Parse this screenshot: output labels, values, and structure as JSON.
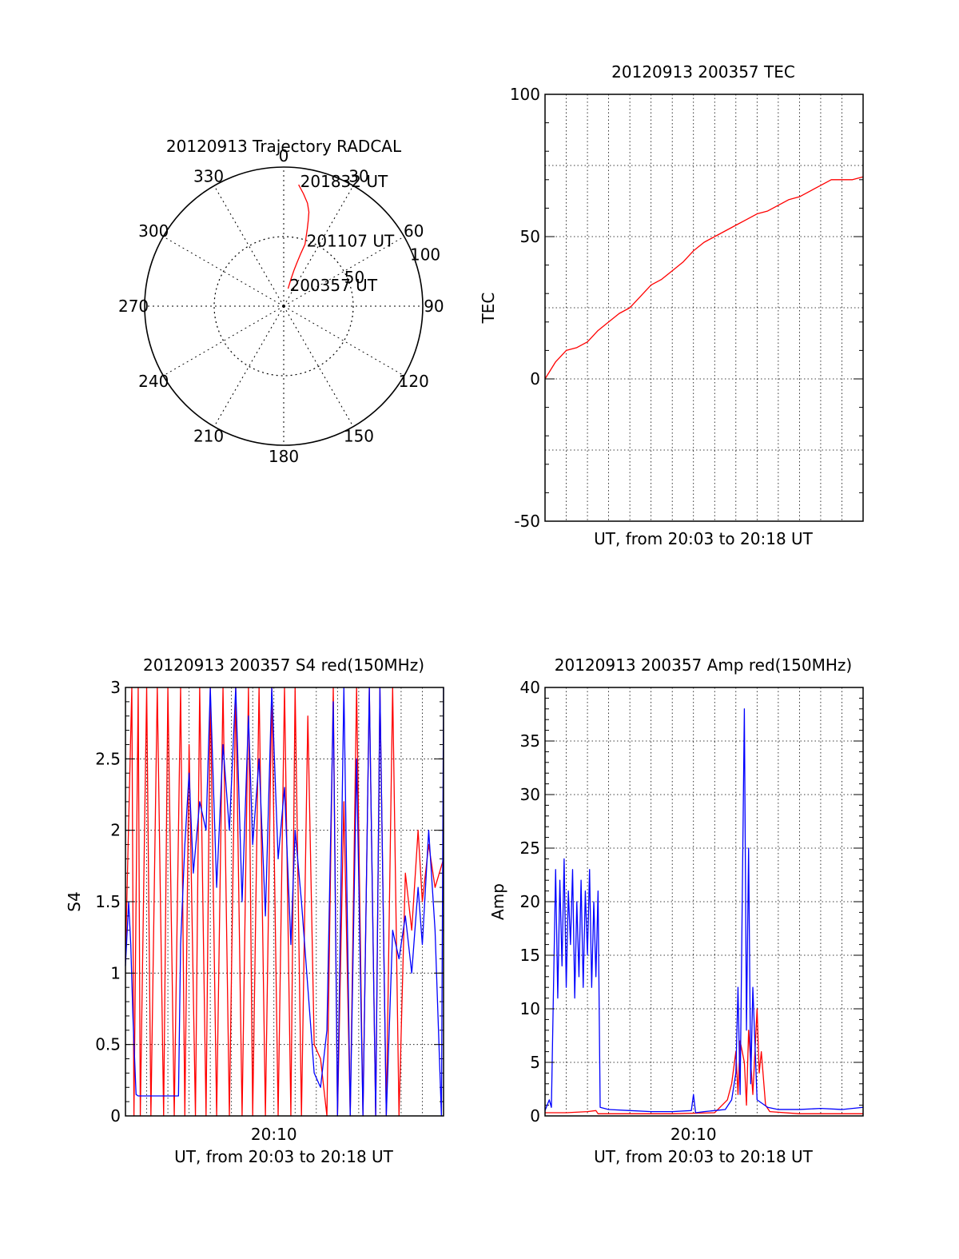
{
  "colors": {
    "red": "#ff0000",
    "blue": "#0000ff",
    "axis": "#000000",
    "grid": "#000000"
  },
  "chart_data": [
    {
      "id": "polar",
      "type": "polar-trajectory",
      "title": "20120913 Trajectory RADCAL",
      "angle_labels": [
        "0",
        "30",
        "60",
        "90",
        "120",
        "150",
        "180",
        "210",
        "240",
        "270",
        "300",
        "330"
      ],
      "angle_values": [
        0,
        30,
        60,
        90,
        120,
        150,
        180,
        210,
        240,
        270,
        300,
        330
      ],
      "radial_labels": [
        "50",
        "100"
      ],
      "radial_values": [
        50,
        100
      ],
      "radial_max": 100,
      "trajectory": {
        "color": "red",
        "points": [
          [
            7,
            88
          ],
          [
            10,
            82
          ],
          [
            13,
            76
          ],
          [
            15,
            70
          ],
          [
            16,
            64
          ],
          [
            17,
            58
          ],
          [
            18,
            52
          ],
          [
            19,
            47
          ],
          [
            18,
            40
          ],
          [
            17,
            33
          ],
          [
            16,
            27
          ],
          [
            15,
            20
          ],
          [
            14,
            13
          ]
        ],
        "labels": [
          {
            "text": "201832 UT",
            "point_index": 0
          },
          {
            "text": "201107 UT",
            "point_index": 7
          },
          {
            "text": "200357 UT",
            "point_index": 12
          }
        ]
      }
    },
    {
      "id": "tec",
      "type": "line",
      "title": "20120913 200357 TEC",
      "ylabel": "TEC",
      "xlabel": "UT, from 20:03 to 20:18 UT",
      "ylim": [
        -50,
        100
      ],
      "yticks": [
        -50,
        0,
        50,
        100
      ],
      "yticklabels": [
        "-50",
        "0",
        "50",
        "100"
      ],
      "xlim": [
        0,
        15
      ],
      "xticks": [],
      "series": [
        {
          "name": "TEC",
          "color": "red",
          "x": [
            0,
            0.5,
            1,
            1.5,
            2,
            2.5,
            3,
            3.5,
            4,
            4.5,
            5,
            5.5,
            6,
            6.5,
            7,
            7.5,
            8,
            8.5,
            9,
            9.5,
            10,
            10.5,
            11,
            11.5,
            12,
            12.5,
            13,
            13.5,
            14,
            14.5,
            15
          ],
          "y": [
            0,
            6,
            10,
            11,
            13,
            17,
            20,
            23,
            25,
            29,
            33,
            35,
            38,
            41,
            45,
            48,
            50,
            52,
            54,
            56,
            58,
            59,
            61,
            63,
            64,
            66,
            68,
            70,
            70,
            70,
            71
          ]
        }
      ]
    },
    {
      "id": "s4",
      "type": "line",
      "title": "20120913 200357 S4 red(150MHz)",
      "ylabel": "S4",
      "xlabel": "UT, from 20:03 to 20:18 UT",
      "ylim": [
        0,
        3
      ],
      "yticks": [
        0,
        0.5,
        1,
        1.5,
        2,
        2.5,
        3
      ],
      "yticklabels": [
        "0",
        "0.5",
        "1",
        "1.5",
        "2",
        "2.5",
        "3"
      ],
      "xlim": [
        0,
        15
      ],
      "xticks": [
        7
      ],
      "xticklabels": [
        "20:10"
      ],
      "series": [
        {
          "name": "red",
          "color": "red",
          "x": [
            0,
            0.3,
            0.4,
            0.6,
            0.7,
            1.0,
            1.2,
            1.5,
            1.8,
            2.0,
            2.3,
            2.6,
            2.8,
            3.0,
            3.3,
            3.5,
            3.8,
            4.0,
            4.3,
            4.6,
            4.9,
            5.2,
            5.5,
            5.8,
            6.0,
            6.3,
            6.6,
            6.9,
            7.2,
            7.5,
            7.8,
            8.0,
            8.3,
            8.6,
            8.9,
            9.2,
            9.5,
            9.8,
            10.0,
            10.3,
            10.6,
            10.9,
            11.2,
            11.5,
            11.8,
            12.0,
            12.3,
            12.6,
            12.9,
            13.2,
            13.5,
            13.8,
            14.0,
            14.3,
            14.6,
            15.0
          ],
          "y": [
            1.1,
            3.0,
            0.0,
            3.0,
            0.0,
            3.0,
            0.0,
            3.0,
            0.0,
            3.0,
            0.0,
            3.0,
            0.0,
            2.6,
            0.0,
            3.0,
            0.0,
            3.0,
            0.0,
            3.0,
            0.0,
            3.0,
            0.0,
            3.0,
            0.0,
            3.0,
            0.0,
            3.0,
            0.0,
            3.0,
            0.0,
            3.0,
            0.0,
            2.8,
            0.5,
            0.4,
            0.0,
            3.0,
            0.0,
            2.2,
            0.0,
            3.0,
            0.0,
            3.0,
            0.0,
            3.0,
            0.0,
            3.0,
            0.0,
            1.7,
            1.3,
            2.0,
            1.5,
            1.9,
            1.6,
            1.8
          ]
        },
        {
          "name": "blue",
          "color": "blue",
          "x": [
            0,
            0.15,
            0.25,
            0.35,
            0.5,
            0.6,
            2.5,
            2.6,
            2.8,
            3.0,
            3.2,
            3.5,
            3.8,
            4.0,
            4.3,
            4.6,
            4.9,
            5.2,
            5.5,
            5.8,
            6.0,
            6.3,
            6.6,
            6.9,
            7.2,
            7.5,
            7.8,
            8.0,
            8.3,
            8.6,
            8.9,
            9.2,
            9.5,
            9.8,
            10.0,
            10.3,
            10.6,
            10.9,
            11.2,
            11.5,
            11.8,
            12.0,
            12.3,
            12.6,
            12.9,
            13.2,
            13.5,
            13.8,
            14.0,
            14.3,
            14.6,
            14.9,
            15.0
          ],
          "y": [
            1.05,
            1.5,
            1.2,
            0.7,
            0.15,
            0.14,
            0.14,
            1.2,
            1.9,
            2.4,
            1.7,
            2.2,
            2.0,
            3.0,
            1.6,
            2.6,
            2.0,
            3.0,
            1.5,
            2.8,
            1.9,
            2.5,
            1.4,
            3.0,
            1.8,
            2.3,
            1.2,
            2.0,
            1.5,
            0.9,
            0.3,
            0.2,
            0.6,
            2.9,
            0.0,
            3.0,
            0.0,
            2.5,
            0.0,
            3.0,
            0.0,
            3.0,
            0.0,
            1.3,
            1.1,
            1.4,
            1.0,
            1.6,
            1.2,
            2.0,
            1.3,
            0.0,
            3.0
          ]
        }
      ]
    },
    {
      "id": "amp",
      "type": "line",
      "title": "20120913 200357 Amp red(150MHz)",
      "ylabel": "Amp",
      "xlabel": "UT, from 20:03 to 20:18 UT",
      "ylim": [
        0,
        40
      ],
      "yticks": [
        0,
        5,
        10,
        15,
        20,
        25,
        30,
        35,
        40
      ],
      "yticklabels": [
        "0",
        "5",
        "10",
        "15",
        "20",
        "25",
        "30",
        "35",
        "40"
      ],
      "xlim": [
        0,
        15
      ],
      "xticks": [
        7
      ],
      "xticklabels": [
        "20:10"
      ],
      "series": [
        {
          "name": "red",
          "color": "red",
          "x": [
            0,
            1,
            2,
            2.4,
            2.5,
            4,
            6,
            8,
            8.6,
            8.8,
            9.0,
            9.1,
            9.2,
            9.4,
            9.5,
            9.6,
            9.8,
            10.0,
            10.1,
            10.2,
            10.4,
            10.6,
            12,
            15
          ],
          "y": [
            0.3,
            0.3,
            0.4,
            0.5,
            0.2,
            0.2,
            0.2,
            0.3,
            1.5,
            3,
            6,
            2,
            7,
            5,
            1,
            8,
            2,
            10,
            4,
            6,
            1,
            0.4,
            0.2,
            0.2
          ]
        },
        {
          "name": "blue",
          "color": "blue",
          "x": [
            0,
            0.2,
            0.3,
            0.4,
            0.5,
            0.6,
            0.7,
            0.8,
            0.9,
            1.0,
            1.1,
            1.2,
            1.3,
            1.4,
            1.5,
            1.6,
            1.7,
            1.8,
            1.9,
            2.0,
            2.1,
            2.2,
            2.3,
            2.4,
            2.5,
            2.6,
            3,
            4,
            5,
            6,
            6.9,
            7.0,
            7.1,
            7.5,
            8,
            8.5,
            8.8,
            9.0,
            9.1,
            9.2,
            9.3,
            9.4,
            9.5,
            9.6,
            9.7,
            9.8,
            10,
            10.5,
            11,
            12,
            13,
            14,
            15
          ],
          "y": [
            0.5,
            1.5,
            0.8,
            12,
            23,
            11,
            22,
            14,
            24,
            12,
            21,
            16,
            23,
            11,
            20,
            13,
            22,
            12,
            21,
            15,
            23,
            12,
            20,
            13,
            21,
            0.8,
            0.6,
            0.5,
            0.4,
            0.4,
            0.5,
            2,
            0.3,
            0.4,
            0.5,
            0.6,
            1.5,
            4,
            12,
            2,
            20,
            38,
            8,
            25,
            3,
            12,
            1.5,
            0.8,
            0.6,
            0.6,
            0.7,
            0.6,
            0.8
          ]
        }
      ]
    }
  ]
}
